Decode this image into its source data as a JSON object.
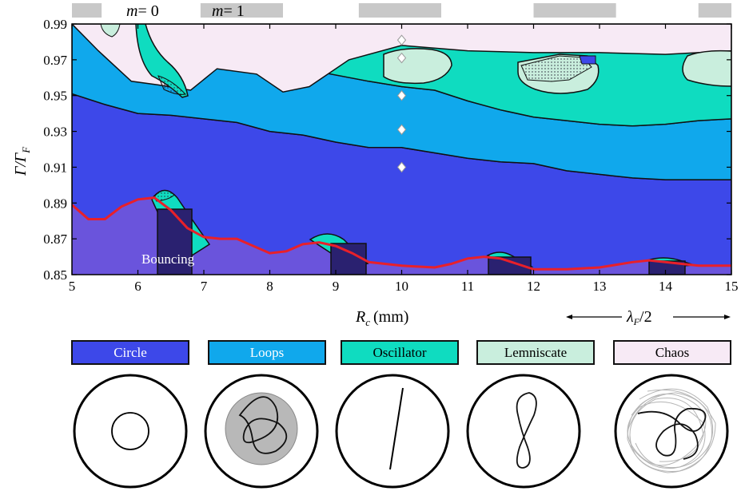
{
  "chart_data": {
    "type": "area",
    "xlabel": "R",
    "xlabel_sub": "c",
    "xlabel_unit": "(mm)",
    "ylabel": "Γ/Γ",
    "ylabel_sub": "F",
    "xlim": [
      5,
      15
    ],
    "ylim": [
      0.85,
      0.99
    ],
    "x_ticks": [
      "5",
      "6",
      "7",
      "8",
      "9",
      "10",
      "11",
      "12",
      "13",
      "14",
      "15"
    ],
    "y_ticks": [
      "0.85",
      "0.87",
      "0.89",
      "0.91",
      "0.93",
      "0.95",
      "0.97",
      "0.99"
    ],
    "annotations": {
      "bouncing": "Bouncing",
      "mode0_m": "m",
      "mode0_value": "= 0",
      "mode1_m": "m",
      "mode1_value": "= 1",
      "lambda_label": "λ",
      "lambda_sub": "F",
      "lambda_value": "/2"
    },
    "colors": {
      "circle": "#3d48e9",
      "loops": "#10a8ec",
      "oscillator": "#0fdcc0",
      "lemniscate": "#c9eedd",
      "chaos": "#f7eaf5",
      "bouncing": "#6a54dc",
      "threshold": "#e8202a",
      "gray_bar": "#c8c8c8"
    },
    "boundaries": {
      "threshold": [
        [
          5,
          0.889
        ],
        [
          5.25,
          0.881
        ],
        [
          5.5,
          0.881
        ],
        [
          5.75,
          0.888
        ],
        [
          6,
          0.892
        ],
        [
          6.25,
          0.893
        ],
        [
          6.5,
          0.886
        ],
        [
          6.75,
          0.876
        ],
        [
          7,
          0.871
        ],
        [
          7.25,
          0.87
        ],
        [
          7.5,
          0.87
        ],
        [
          7.75,
          0.866
        ],
        [
          8,
          0.862
        ],
        [
          8.25,
          0.863
        ],
        [
          8.5,
          0.867
        ],
        [
          8.75,
          0.868
        ],
        [
          9,
          0.866
        ],
        [
          9.25,
          0.862
        ],
        [
          9.5,
          0.857
        ],
        [
          9.75,
          0.856
        ],
        [
          10,
          0.855
        ],
        [
          10.5,
          0.854
        ],
        [
          10.75,
          0.856
        ],
        [
          11,
          0.859
        ],
        [
          11.25,
          0.86
        ],
        [
          11.5,
          0.859
        ],
        [
          11.75,
          0.856
        ],
        [
          12,
          0.853
        ],
        [
          12.5,
          0.853
        ],
        [
          13,
          0.854
        ],
        [
          13.5,
          0.857
        ],
        [
          13.75,
          0.858
        ],
        [
          14,
          0.857
        ],
        [
          14.25,
          0.856
        ],
        [
          14.5,
          0.855
        ],
        [
          15,
          0.855
        ]
      ],
      "circle_loops": [
        [
          5,
          0.951
        ],
        [
          5.5,
          0.945
        ],
        [
          6,
          0.94
        ],
        [
          6.5,
          0.939
        ],
        [
          7,
          0.937
        ],
        [
          7.5,
          0.935
        ],
        [
          8,
          0.93
        ],
        [
          8.5,
          0.928
        ],
        [
          9,
          0.924
        ],
        [
          9.5,
          0.921
        ],
        [
          10,
          0.921
        ],
        [
          10.5,
          0.918
        ],
        [
          11,
          0.915
        ],
        [
          11.5,
          0.913
        ],
        [
          12,
          0.912
        ],
        [
          12.5,
          0.908
        ],
        [
          13,
          0.906
        ],
        [
          13.5,
          0.904
        ],
        [
          14,
          0.903
        ],
        [
          14.5,
          0.903
        ],
        [
          15,
          0.903
        ]
      ],
      "loops_osc": [
        [
          5,
          0.99
        ],
        [
          5.3,
          0.985
        ],
        [
          5.8,
          0.978
        ],
        [
          6.3,
          0.976
        ],
        [
          6.8,
          0.973
        ],
        [
          7.5,
          0.968
        ],
        [
          8.5,
          0.965
        ],
        [
          9.5,
          0.958
        ],
        [
          10,
          0.955
        ],
        [
          10.5,
          0.953
        ],
        [
          11,
          0.947
        ],
        [
          11.5,
          0.942
        ],
        [
          12,
          0.938
        ],
        [
          12.5,
          0.936
        ],
        [
          13,
          0.934
        ],
        [
          13.5,
          0.933
        ],
        [
          14,
          0.934
        ],
        [
          14.5,
          0.936
        ],
        [
          15,
          0.937
        ]
      ],
      "chaos_region": [
        [
          5,
          0.99
        ],
        [
          5.4,
          0.975
        ],
        [
          5.9,
          0.958
        ],
        [
          6.3,
          0.956
        ],
        [
          6.8,
          0.953
        ],
        [
          7.2,
          0.965
        ],
        [
          7.8,
          0.962
        ],
        [
          8.2,
          0.952
        ],
        [
          8.6,
          0.955
        ],
        [
          9.2,
          0.97
        ],
        [
          10,
          0.978
        ],
        [
          11,
          0.975
        ],
        [
          12,
          0.974
        ],
        [
          13,
          0.974
        ],
        [
          14,
          0.973
        ],
        [
          15,
          0.975
        ],
        [
          15,
          0.99
        ]
      ]
    },
    "markers": {
      "x": 10,
      "y": [
        0.91,
        0.931,
        0.95,
        0.971,
        0.981
      ]
    },
    "mode_bars_x": [
      [
        5,
        5.45
      ],
      [
        6.95,
        8.2
      ],
      [
        9.35,
        10.6
      ],
      [
        12,
        13.25
      ],
      [
        14.5,
        15
      ]
    ]
  },
  "legend": [
    {
      "label": "Circle",
      "color": "#3d48e9",
      "text_color": "#ffffff"
    },
    {
      "label": "Loops",
      "color": "#10a8ec",
      "text_color": "#ffffff"
    },
    {
      "label": "Oscillator",
      "color": "#0fdcc0",
      "text_color": "#000000"
    },
    {
      "label": "Lemniscate",
      "color": "#c9eedd",
      "text_color": "#000000"
    },
    {
      "label": "Chaos",
      "color": "#f7eaf5",
      "text_color": "#000000"
    }
  ]
}
